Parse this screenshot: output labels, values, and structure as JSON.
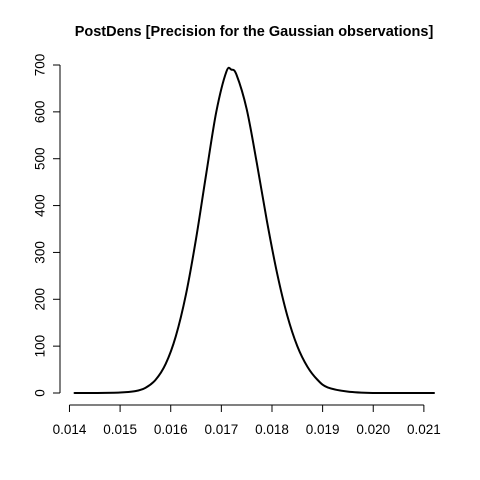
{
  "chart_data": {
    "type": "line",
    "title": "PostDens [Precision for the Gaussian observations]",
    "xlabel": "",
    "ylabel": "",
    "xlim": [
      0.01405,
      0.0212
    ],
    "ylim": [
      0,
      700
    ],
    "grid": false,
    "legend": "none",
    "x_ticks": [
      0.014,
      0.015,
      0.016,
      0.017,
      0.018,
      0.019,
      0.02,
      0.021
    ],
    "x_tick_labels": [
      "0.014",
      "0.015",
      "0.016",
      "0.017",
      "0.018",
      "0.019",
      "0.020",
      "0.021"
    ],
    "y_ticks": [
      0,
      100,
      200,
      300,
      400,
      500,
      600,
      700
    ],
    "y_tick_labels": [
      "0",
      "100",
      "200",
      "300",
      "400",
      "500",
      "600",
      "700"
    ],
    "series": [
      {
        "x": [
          0.0141,
          0.0145,
          0.015,
          0.0153,
          0.0155,
          0.0157,
          0.0159,
          0.0161,
          0.0163,
          0.0165,
          0.0167,
          0.0169,
          0.0171,
          0.0172,
          0.0173,
          0.0175,
          0.0177,
          0.0179,
          0.0181,
          0.0183,
          0.0185,
          0.0187,
          0.0189,
          0.0191,
          0.0195,
          0.02,
          0.0205,
          0.0212
        ],
        "y": [
          0,
          0,
          1,
          4,
          11,
          28,
          62,
          121,
          210,
          329,
          467,
          600,
          686,
          690,
          679,
          606,
          491,
          367,
          256,
          166,
          100,
          56,
          28,
          12,
          3,
          0,
          0,
          0
        ]
      }
    ],
    "color": "#000000"
  }
}
